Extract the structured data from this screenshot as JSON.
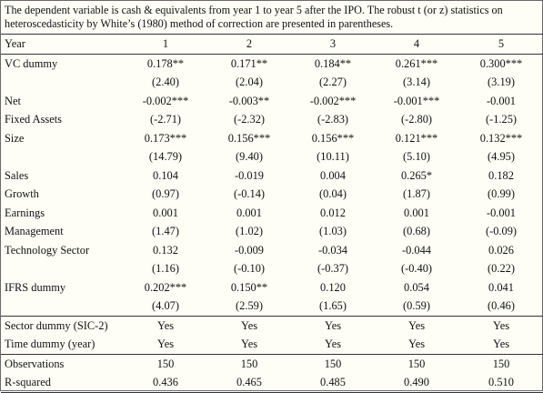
{
  "note": "The dependent variable is cash & equivalents from year 1 to year 5 after the IPO. The robust t (or z) statistics on heteroscedasticity by White’s (1980) method of correction are presented in parentheses.",
  "header": {
    "label": "Year",
    "cols": [
      "1",
      "2",
      "3",
      "4",
      "5"
    ]
  },
  "rows": [
    {
      "label": "VC dummy",
      "values": [
        "0.178**",
        "0.171**",
        "0.184**",
        "0.261***",
        "0.300***"
      ]
    },
    {
      "label": "",
      "values": [
        "(2.40)",
        "(2.04)",
        "(2.27)",
        "(3.14)",
        "(3.19)"
      ]
    },
    {
      "label": "Net",
      "values": [
        "-0.002***",
        "-0.003**",
        "-0.002***",
        "-0.001***",
        "-0.001"
      ]
    },
    {
      "label": "Fixed Assets",
      "values": [
        "(-2.71)",
        "(-2.32)",
        "(-2.83)",
        "(-2.80)",
        "(-1.25)"
      ]
    },
    {
      "label": "Size",
      "values": [
        "0.173***",
        "0.156***",
        "0.156***",
        "0.121***",
        "0.132***"
      ]
    },
    {
      "label": "",
      "values": [
        "(14.79)",
        "(9.40)",
        "(10.11)",
        "(5.10)",
        "(4.95)"
      ]
    },
    {
      "label": "Sales",
      "values": [
        "0.104",
        "-0.019",
        "0.004",
        "0.265*",
        "0.182"
      ]
    },
    {
      "label": "Growth",
      "values": [
        "(0.97)",
        "(-0.14)",
        "(0.04)",
        "(1.87)",
        "(0.99)"
      ]
    },
    {
      "label": "Earnings",
      "values": [
        "0.001",
        "0.001",
        "0.012",
        "0.001",
        "-0.001"
      ]
    },
    {
      "label": "Management",
      "values": [
        "(1.47)",
        "(1.02)",
        "(1.03)",
        "(0.68)",
        "(-0.09)"
      ]
    },
    {
      "label": "Technology Sector",
      "values": [
        "0.132",
        "-0.009",
        "-0.034",
        "-0.044",
        "0.026"
      ]
    },
    {
      "label": "",
      "values": [
        "(1.16)",
        "(-0.10)",
        "(-0.37)",
        "(-0.40)",
        "(0.22)"
      ]
    },
    {
      "label": "IFRS dummy",
      "values": [
        "0.202***",
        "0.150**",
        "0.120",
        "0.054",
        "0.041"
      ]
    },
    {
      "label": "",
      "values": [
        "(4.07)",
        "(2.59)",
        "(1.65)",
        "(0.59)",
        "(0.46)"
      ]
    }
  ],
  "footer": [
    {
      "label": "Sector dummy (SIC-2)",
      "values": [
        "Yes",
        "Yes",
        "Yes",
        "Yes",
        "Yes"
      ]
    },
    {
      "label": "Time dummy (year)",
      "values": [
        "Yes",
        "Yes",
        "Yes",
        "Yes",
        "Yes"
      ]
    },
    {
      "label": "Observations",
      "values": [
        "150",
        "150",
        "150",
        "150",
        "150"
      ]
    },
    {
      "label": "R-squared",
      "values": [
        "0.436",
        "0.465",
        "0.485",
        "0.490",
        "0.510"
      ]
    }
  ]
}
